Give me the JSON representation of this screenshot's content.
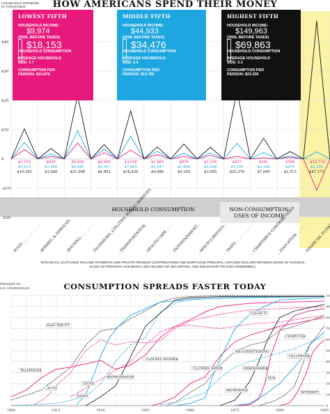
{
  "top": {
    "title": "HOW AMERICANS SPEND THEIR MONEY",
    "ylabel_line1": "HOUSEHOLD SPENDING",
    "ylabel_line2": "IN THOUSANDS",
    "yticks": [
      "$40",
      "$30",
      "$20",
      "$10",
      "0",
      "–$10",
      "–$20"
    ],
    "panels": [
      {
        "heading": "LOWEST FIFTH",
        "l1": "HOUSEHOLD INCOME:",
        "income": "$9,974",
        "l2": "(2006, BEFORE TAXES)",
        "consumption": "$18,153",
        "l3": "HOUSEHOLD CONSUMPTION",
        "l4": "AVERAGE HOUSEHOLD",
        "l5": "SIZE: 1.7",
        "l6": "CONSUMPTION PER",
        "l7": "PERSON: $10,678",
        "color": "#e8197c"
      },
      {
        "heading": "MIDDLE FIFTH",
        "l1": "HOUSEHOLD INCOME:",
        "income": "$44,933",
        "l2": "(2006, BEFORE TAXES)",
        "consumption": "$34,476",
        "l3": "HOUSEHOLD CONSUMPTION",
        "l4": "AVERAGE HOUSEHOLD",
        "l5": "SIZE: 2.5",
        "l6": "CONSUMPTION PER",
        "l7": "PERSON: $13,790",
        "color": "#1ea6e0"
      },
      {
        "heading": "HIGHEST FIFTH",
        "l1": "HOUSEHOLD INCOME:",
        "income": "$149,963",
        "l2": "(2006, BEFORE TAXES)",
        "consumption": "$69,863",
        "l3": "HOUSEHOLD CONSUMPTION",
        "l4": "AVERAGE HOUSEHOLD",
        "l5": "SIZE: 3.1",
        "l6": "CONSUMPTION PER",
        "l7": "PERSON: $22,536",
        "color": "#111111"
      }
    ],
    "value_table": [
      [
        "$3,193",
        "$5,614",
        "$10,243"
      ],
      [
        "$845",
        "$1,680",
        "$3,548"
      ],
      [
        "$5,428",
        "$9,640",
        "$21,598"
      ],
      [
        "$2,090",
        "$3,307",
        "$4,902"
      ],
      [
        "$3,038",
        "$7,662",
        "$16,426"
      ],
      [
        "$1,485",
        "$2,647",
        "$4,086"
      ],
      [
        "$879",
        "$1,898",
        "$5,105"
      ],
      [
        "$1,195",
        "$2,028",
        "$3,955"
      ],
      [
        "$927",
        "$5,299",
        "$23,376"
      ],
      [
        "$361",
        "$2,188",
        "$7,040"
      ],
      [
        "$556",
        "$975",
        "$2,513"
      ],
      [
        "–$10,716",
        "$2,395",
        "$47,171"
      ]
    ],
    "value_colors": [
      "#e8197c",
      "#1ea6e0",
      "#111111"
    ],
    "band_consumption": "HOUSEHOLD CONSUMPTION",
    "band_nonconsumption_1": "NON-CONSUMPTION",
    "band_nonconsumption_2": "USES OF INCOME",
    "categories": [
      "FOOD",
      "APPAREL & SERVICES",
      "HOUSING",
      "TELEPHONE, UTILITIES, PUBLIC SERVICES",
      "TRANSPORTATION",
      "HEALTH CARE",
      "ENTERTAINMENT",
      "MISCELLANEOUS",
      "TAXES",
      "CHARITABLE CONTRIBUTIONS",
      "EDUCATION",
      "FINANCIAL FLOWS*"
    ],
    "footnote_1": "*(FINANCIAL OUTFLOWS INCLUDE PAYMENTS LIKE PRIVATE PENSION CONTRIBUTIONS AND MORTGAGE PRINCIPAL; INFLOWS INCLUDE DRAWING DOWN OF SAVINGS,",
    "footnote_2": "SALES OF PRINCIPAL HOLDINGS LIKE HOUSES OR SECURITIES, AND INSURANCE POLICIES REDEEMED.)"
  },
  "bottom": {
    "title": "CONSUMPTION SPREADS FASTER TODAY",
    "ylabel_line1": "PERCENT OF",
    "ylabel_line2": "U.S. HOUSEHOLDS",
    "yticks": [
      "100",
      "90",
      "80",
      "70",
      "60",
      "50",
      "40",
      "30",
      "20",
      "10",
      "0"
    ],
    "xticks": [
      "1900",
      "1915",
      "1930",
      "1945",
      "1960",
      "1975",
      "1990",
      "2005"
    ],
    "labels": [
      "ELECTRICITY",
      "TELEPHONE",
      "AUTO",
      "RADIO",
      "STOVE",
      "REFRIGERATOR",
      "CLOTHES WASHER",
      "CLOTHES DRYER",
      "AIR-CONDITIONING",
      "DISHWASHER",
      "MICROWAVE",
      "COLOR TV",
      "COMPUTER",
      "CELLPHONE",
      "VCR",
      "INTERNET"
    ]
  },
  "chart_data": [
    {
      "type": "line",
      "title": "HOW AMERICANS SPEND THEIR MONEY",
      "ylabel": "HOUSEHOLD SPENDING IN THOUSANDS",
      "ylim": [
        -20,
        45
      ],
      "categories": [
        "FOOD",
        "APPAREL & SERVICES",
        "HOUSING",
        "TELEPHONE, UTILITIES, PUBLIC SERVICES",
        "TRANSPORTATION",
        "HEALTH CARE",
        "ENTERTAINMENT",
        "MISCELLANEOUS",
        "TAXES",
        "CHARITABLE CONTRIBUTIONS",
        "EDUCATION",
        "FINANCIAL FLOWS*"
      ],
      "series": [
        {
          "name": "LOWEST FIFTH",
          "color": "#e8197c",
          "values": [
            3.193,
            0.845,
            5.428,
            2.09,
            3.038,
            1.485,
            0.879,
            1.195,
            0.927,
            0.361,
            0.556,
            -10.716
          ]
        },
        {
          "name": "MIDDLE FIFTH",
          "color": "#1ea6e0",
          "values": [
            5.614,
            1.68,
            9.64,
            3.307,
            7.662,
            2.647,
            1.898,
            2.028,
            5.299,
            2.188,
            0.975,
            2.395
          ]
        },
        {
          "name": "HIGHEST FIFTH",
          "color": "#111111",
          "values": [
            10.243,
            3.548,
            21.598,
            4.902,
            16.426,
            4.086,
            5.105,
            3.955,
            23.376,
            7.04,
            2.513,
            47.171
          ]
        }
      ]
    },
    {
      "type": "line",
      "title": "CONSUMPTION SPREADS FASTER TODAY",
      "ylabel": "PERCENT OF U.S. HOUSEHOLDS",
      "ylim": [
        0,
        100
      ],
      "xlim": [
        1900,
        2005
      ],
      "series": [
        {
          "name": "ELECTRICITY",
          "color": "#222222",
          "dash": "2,1.5",
          "points": [
            [
              1900,
              5
            ],
            [
              1910,
              14
            ],
            [
              1920,
              35
            ],
            [
              1925,
              55
            ],
            [
              1930,
              68
            ],
            [
              1935,
              70
            ],
            [
              1940,
              79
            ],
            [
              1945,
              86
            ],
            [
              1950,
              94
            ],
            [
              1955,
              98
            ],
            [
              1960,
              99
            ],
            [
              1970,
              100
            ],
            [
              2005,
              100
            ]
          ]
        },
        {
          "name": "TELEPHONE",
          "color": "#e8197c",
          "points": [
            [
              1900,
              8
            ],
            [
              1905,
              14
            ],
            [
              1910,
              25
            ],
            [
              1915,
              33
            ],
            [
              1920,
              35
            ],
            [
              1925,
              38
            ],
            [
              1930,
              41
            ],
            [
              1935,
              33
            ],
            [
              1940,
              37
            ],
            [
              1945,
              46
            ],
            [
              1950,
              62
            ],
            [
              1955,
              72
            ],
            [
              1960,
              78
            ],
            [
              1965,
              85
            ],
            [
              1970,
              90
            ],
            [
              1980,
              93
            ],
            [
              2005,
              95
            ]
          ]
        },
        {
          "name": "AUTO",
          "color": "#e8197c",
          "dash": "2,1.5",
          "points": [
            [
              1908,
              1
            ],
            [
              1912,
              8
            ],
            [
              1915,
              18
            ],
            [
              1920,
              30
            ],
            [
              1925,
              50
            ],
            [
              1930,
              60
            ],
            [
              1935,
              55
            ],
            [
              1940,
              58
            ],
            [
              1945,
              57
            ],
            [
              1950,
              59
            ],
            [
              1955,
              70
            ],
            [
              1960,
              77
            ],
            [
              1970,
              83
            ],
            [
              1980,
              87
            ],
            [
              1990,
              88
            ],
            [
              2005,
              90
            ]
          ]
        },
        {
          "name": "RADIO",
          "color": "#1ea6e0",
          "points": [
            [
              1922,
              1
            ],
            [
              1925,
              10
            ],
            [
              1928,
              30
            ],
            [
              1930,
              45
            ],
            [
              1933,
              62
            ],
            [
              1936,
              72
            ],
            [
              1940,
              82
            ],
            [
              1945,
              88
            ],
            [
              1950,
              94
            ],
            [
              1960,
              96
            ],
            [
              1970,
              98
            ],
            [
              2005,
              99
            ]
          ]
        },
        {
          "name": "STOVE",
          "color": "#1ea6e0",
          "dash": "2,1.5",
          "points": [
            [
              1900,
              0
            ],
            [
              1915,
              2
            ],
            [
              1925,
              8
            ],
            [
              1930,
              20
            ],
            [
              1935,
              40
            ],
            [
              1940,
              55
            ],
            [
              1945,
              62
            ],
            [
              1950,
              85
            ],
            [
              1955,
              93
            ],
            [
              1960,
              97
            ],
            [
              2005,
              99
            ]
          ]
        },
        {
          "name": "REFRIGERATOR",
          "color": "#222222",
          "points": [
            [
              1925,
              0
            ],
            [
              1930,
              8
            ],
            [
              1935,
              18
            ],
            [
              1940,
              44
            ],
            [
              1945,
              72
            ],
            [
              1950,
              84
            ],
            [
              1955,
              96
            ],
            [
              1960,
              98
            ],
            [
              1970,
              99
            ],
            [
              2005,
              99
            ]
          ]
        },
        {
          "name": "CLOTHES WASHER",
          "color": "#e8197c",
          "dash": "2,1.5",
          "points": [
            [
              1920,
              8
            ],
            [
              1930,
              24
            ],
            [
              1940,
              40
            ],
            [
              1945,
              55
            ],
            [
              1950,
              67
            ],
            [
              1955,
              72
            ],
            [
              1960,
              73
            ],
            [
              1970,
              70
            ],
            [
              1980,
              74
            ],
            [
              1990,
              76
            ],
            [
              2005,
              82
            ]
          ]
        },
        {
          "name": "CLOTHES DRYER",
          "color": "#e8197c",
          "points": [
            [
              1947,
              0
            ],
            [
              1950,
              2
            ],
            [
              1955,
              8
            ],
            [
              1960,
              20
            ],
            [
              1965,
              26
            ],
            [
              1970,
              45
            ],
            [
              1975,
              58
            ],
            [
              1980,
              64
            ],
            [
              1985,
              68
            ],
            [
              1990,
              72
            ],
            [
              2005,
              80
            ]
          ]
        },
        {
          "name": "AIR-CONDITIONING",
          "color": "#888888",
          "points": [
            [
              1952,
              0
            ],
            [
              1955,
              3
            ],
            [
              1960,
              12
            ],
            [
              1965,
              20
            ],
            [
              1970,
              37
            ],
            [
              1975,
              49
            ],
            [
              1980,
              55
            ],
            [
              1985,
              58
            ],
            [
              1990,
              68
            ],
            [
              1995,
              72
            ],
            [
              2005,
              82
            ]
          ]
        },
        {
          "name": "DISHWASHER",
          "color": "#1ea6e0",
          "dash": "2,1.5",
          "points": [
            [
              1950,
              1
            ],
            [
              1955,
              3
            ],
            [
              1960,
              7
            ],
            [
              1965,
              12
            ],
            [
              1970,
              25
            ],
            [
              1975,
              35
            ],
            [
              1980,
              40
            ],
            [
              1985,
              44
            ],
            [
              1990,
              48
            ],
            [
              1995,
              52
            ],
            [
              2005,
              63
            ]
          ]
        },
        {
          "name": "MICROWAVE",
          "color": "#222222",
          "points": [
            [
              1970,
              0
            ],
            [
              1975,
              5
            ],
            [
              1978,
              15
            ],
            [
              1980,
              22
            ],
            [
              1983,
              40
            ],
            [
              1986,
              60
            ],
            [
              1990,
              80
            ],
            [
              1995,
              86
            ],
            [
              2000,
              89
            ],
            [
              2005,
              92
            ]
          ]
        },
        {
          "name": "COLOR TV",
          "color": "#1ea6e0",
          "points": [
            [
              1955,
              0
            ],
            [
              1960,
              2
            ],
            [
              1965,
              7
            ],
            [
              1968,
              30
            ],
            [
              1970,
              42
            ],
            [
              1975,
              70
            ],
            [
              1980,
              83
            ],
            [
              1985,
              90
            ],
            [
              1990,
              96
            ],
            [
              2005,
              98
            ]
          ]
        },
        {
          "name": "COMPUTER",
          "color": "#1ea6e0",
          "points": [
            [
              1975,
              0
            ],
            [
              1980,
              2
            ],
            [
              1985,
              10
            ],
            [
              1990,
              20
            ],
            [
              1995,
              35
            ],
            [
              1998,
              45
            ],
            [
              2000,
              55
            ],
            [
              2005,
              67
            ]
          ]
        },
        {
          "name": "CELLPHONE",
          "color": "#222222",
          "dash": "2,1.5",
          "points": [
            [
              1983,
              0
            ],
            [
              1988,
              4
            ],
            [
              1992,
              10
            ],
            [
              1995,
              18
            ],
            [
              1998,
              40
            ],
            [
              2000,
              55
            ],
            [
              2003,
              65
            ],
            [
              2005,
              73
            ]
          ]
        },
        {
          "name": "VCR",
          "color": "#e8197c",
          "points": [
            [
              1976,
              0
            ],
            [
              1980,
              1
            ],
            [
              1983,
              6
            ],
            [
              1985,
              20
            ],
            [
              1987,
              45
            ],
            [
              1990,
              68
            ],
            [
              1995,
              82
            ],
            [
              2000,
              86
            ],
            [
              2005,
              88
            ]
          ]
        },
        {
          "name": "INTERNET",
          "color": "#e8197c",
          "points": [
            [
              1990,
              0
            ],
            [
              1993,
              2
            ],
            [
              1995,
              8
            ],
            [
              1997,
              18
            ],
            [
              1999,
              30
            ],
            [
              2001,
              48
            ],
            [
              2003,
              55
            ],
            [
              2005,
              60
            ]
          ]
        }
      ]
    }
  ]
}
